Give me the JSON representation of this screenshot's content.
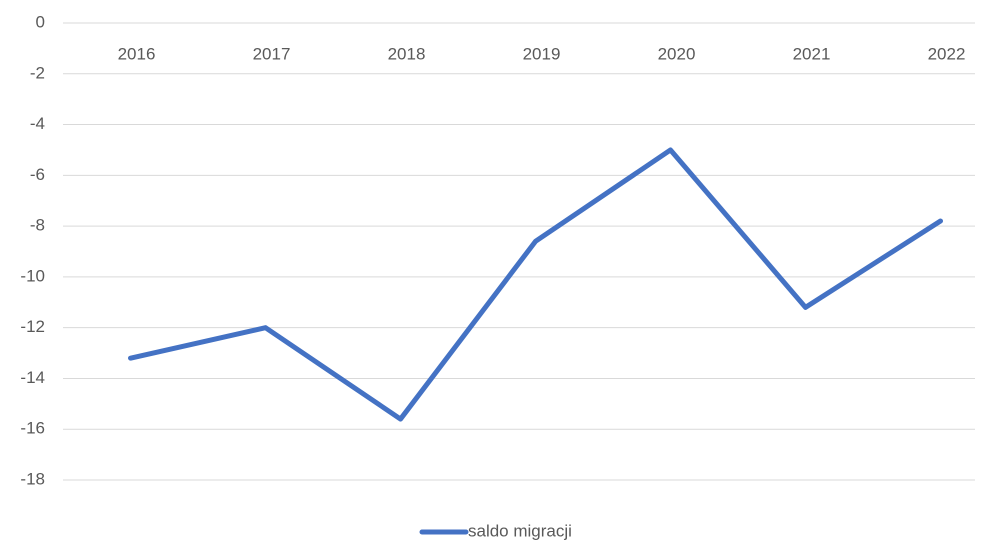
{
  "chart_data": {
    "type": "line",
    "categories": [
      "2016",
      "2017",
      "2018",
      "2019",
      "2020",
      "2021",
      "2022"
    ],
    "series": [
      {
        "name": "saldo migracji",
        "color": "#4472c4",
        "values": [
          -13.2,
          -12,
          -15.6,
          -8.6,
          -5,
          -11.2,
          -7.8
        ]
      }
    ],
    "ylim": [
      -18,
      0
    ],
    "yticks": [
      0,
      -2,
      -4,
      -6,
      -8,
      -10,
      -12,
      -14,
      -16,
      -18
    ],
    "grid": true,
    "legend": "bottom"
  }
}
